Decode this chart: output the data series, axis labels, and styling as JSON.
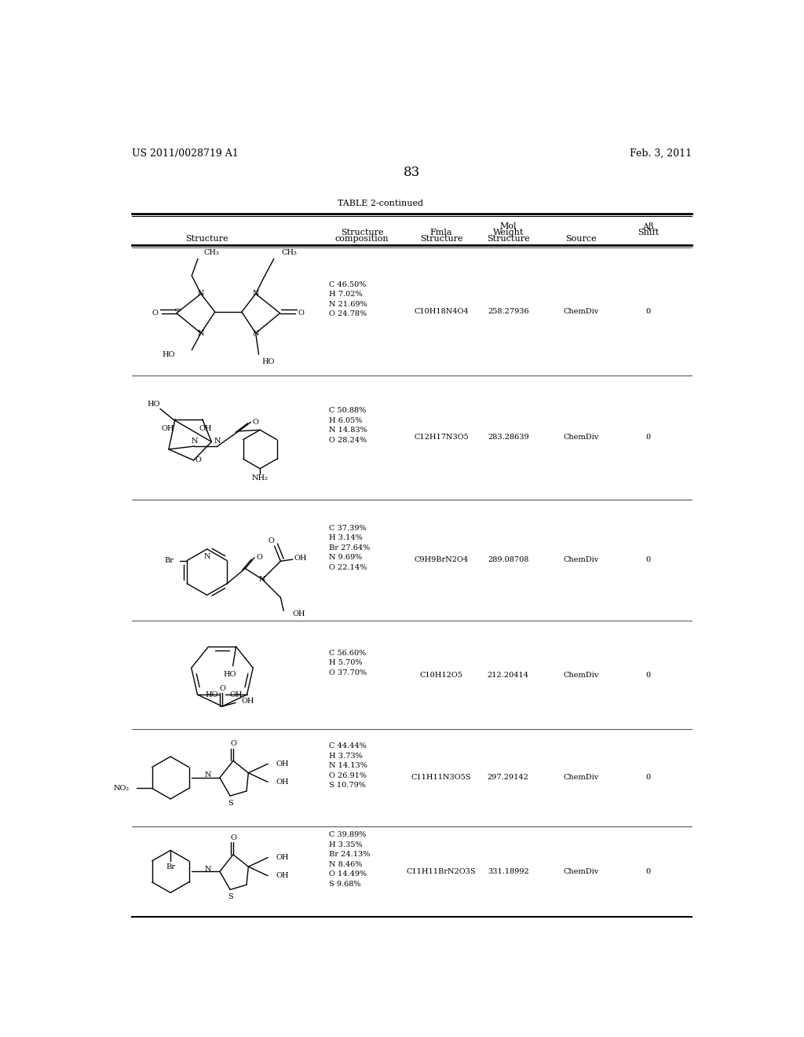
{
  "header_left": "US 2011/0028719 A1",
  "header_right": "Feb. 3, 2011",
  "page_number": "83",
  "table_title": "TABLE 2-continued",
  "col_headers": {
    "col1": "Structure",
    "col2_line1": "Structure",
    "col2_line2": "composition",
    "col3_line1": "Fmla",
    "col3_line2": "Structure",
    "col4_line1": "Mol",
    "col4_line2": "Weight",
    "col4_line3": "Structure",
    "col5": "Source",
    "col6_line1": "Aβ",
    "col6_line2": "Shift"
  },
  "rows": [
    {
      "composition": "C 46.50%\nH 7.02%\nN 21.69%\nO 24.78%",
      "fmla": "C10H18N4O4",
      "mol_weight": "258.27936",
      "source": "ChemDiv",
      "ab_shift": "0"
    },
    {
      "composition": "C 50.88%\nH 6.05%\nN 14.83%\nO 28.24%",
      "fmla": "C12H17N3O5",
      "mol_weight": "283.28639",
      "source": "ChemDiv",
      "ab_shift": "0"
    },
    {
      "composition": "C 37.39%\nH 3.14%\nBr 27.64%\nN 9.69%\nO 22.14%",
      "fmla": "C9H9BrN2O4",
      "mol_weight": "289.08708",
      "source": "ChemDiv",
      "ab_shift": "0"
    },
    {
      "composition": "C 56.60%\nH 5.70%\nO 37.70%",
      "fmla": "C10H12O5",
      "mol_weight": "212.20414",
      "source": "ChemDiv",
      "ab_shift": "0"
    },
    {
      "composition": "C 44.44%\nH 3.73%\nN 14.13%\nO 26.91%\nS 10.79%",
      "fmla": "C11H11N3O5S",
      "mol_weight": "297.29142",
      "source": "ChemDiv",
      "ab_shift": "0"
    },
    {
      "composition": "C 39.89%\nH 3.35%\nBr 24.13%\nN 8.46%\nO 14.49%\nS 9.68%",
      "fmla": "C11H11BrN2O3S",
      "mol_weight": "331.18992",
      "source": "ChemDiv",
      "ab_shift": "0"
    }
  ],
  "bg_color": "#ffffff",
  "text_color": "#000000",
  "font_size_header": 9,
  "font_size_body": 8,
  "font_size_page": 12
}
